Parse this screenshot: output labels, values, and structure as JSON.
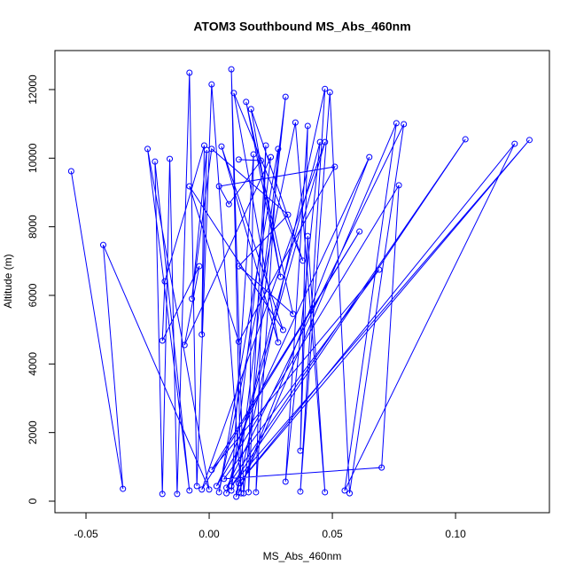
{
  "chart_data": {
    "type": "line",
    "title": "ATOM3 Southbound MS_Abs_460nm",
    "x_label": "MS_Abs_460nm",
    "y_label": "Altitude (m)",
    "marker": "open-circle",
    "grid": false,
    "x": [
      -0.056,
      -0.035,
      -0.043,
      0.0,
      -0.025,
      -0.008,
      -0.022,
      -0.019,
      -0.016,
      -0.013,
      -0.008,
      -0.005,
      0.001,
      0.013,
      0.009,
      0.014,
      0.031,
      0.011,
      0.047,
      0.037,
      0.049,
      0.057,
      0.079,
      0.007,
      0.104,
      0.009,
      0.13,
      0.012,
      0.124,
      0.055,
      0.076,
      0.012,
      0.065,
      0.003,
      0.077,
      0.07,
      0.006,
      0.069,
      0.001,
      0.061,
      -0.003,
      0.047,
      0.007,
      0.045,
      0.031,
      0.04,
      0.037,
      0.04,
      0.047,
      0.035,
      0.004,
      0.028,
      0.019,
      0.023,
      0.016,
      0.018,
      0.009,
      0.025,
      -0.01,
      -0.004,
      -0.019,
      -0.018,
      -0.002,
      -0.003,
      -0.001,
      -0.007,
      0.001,
      0.032,
      0.012,
      0.034,
      0.015,
      0.029,
      0.017,
      0.038,
      0.01,
      0.028,
      0.005,
      0.03,
      -0.008,
      0.012,
      0.051,
      0.004,
      0.008,
      0.021,
      0.012
    ],
    "series": [
      {
        "name": "MS_Abs_460nm",
        "color": "#0000ff",
        "values": [
          9620,
          360,
          7470,
          340,
          10270,
          310,
          9900,
          210,
          9980,
          210,
          12490,
          440,
          12150,
          230,
          12590,
          230,
          11790,
          130,
          12020,
          280,
          11920,
          230,
          10990,
          390,
          10550,
          440,
          10530,
          520,
          10420,
          310,
          11020,
          260,
          10030,
          440,
          9210,
          980,
          650,
          6750,
          910,
          7860,
          340,
          10470,
          230,
          10470,
          570,
          10940,
          1470,
          7730,
          260,
          11040,
          260,
          10270,
          260,
          10370,
          260,
          10110,
          310,
          10030,
          4550,
          6850,
          4680,
          6410,
          10370,
          4860,
          10240,
          5900,
          10270,
          8350,
          6850,
          5460,
          11640,
          6540,
          11430,
          7010,
          11900,
          4630,
          10340,
          4990,
          9180,
          4650,
          9750,
          9180,
          8660,
          9930,
          9960
        ]
      }
    ],
    "xlim": [
      -0.0626,
      0.1381
    ],
    "ylim": [
      -336,
      13137
    ],
    "xticks": [
      -0.05,
      {
        "value": 0,
        "label": "0.00"
      },
      0.05,
      {
        "value": 0.1,
        "label": "0.10"
      }
    ],
    "yticks": [
      0,
      2000,
      4000,
      6000,
      8000,
      10000,
      12000
    ]
  }
}
